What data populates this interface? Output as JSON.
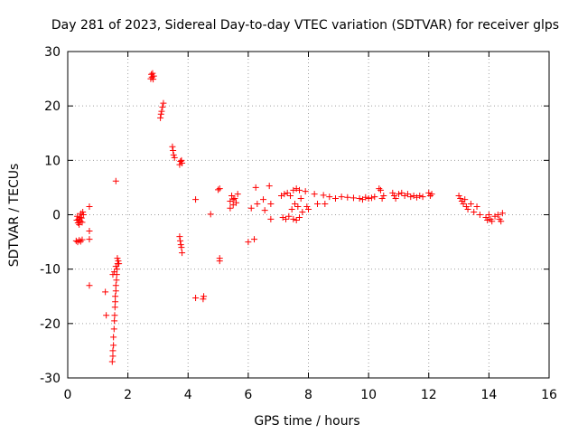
{
  "chart_data": {
    "type": "scatter",
    "title": "Day 281 of 2023, Sidereal Day-to-day VTEC variation (SDTVAR) for receiver glps",
    "xlabel": "GPS time / hours",
    "ylabel": "SDTVAR / TECUs",
    "xlim": [
      0,
      16
    ],
    "ylim": [
      -30,
      30
    ],
    "x_ticks": [
      0,
      2,
      4,
      6,
      8,
      10,
      12,
      14,
      16
    ],
    "x_tick_labels": [
      "0",
      "2",
      "4",
      "6",
      "8",
      "10",
      "12",
      "14",
      "16"
    ],
    "y_ticks": [
      -30,
      -20,
      -10,
      0,
      10,
      20,
      30
    ],
    "y_tick_labels": [
      "-30",
      "-20",
      "-10",
      "0",
      "10",
      "20",
      "30"
    ],
    "grid": true,
    "marker": "+",
    "series": [
      {
        "name": "SDTVAR",
        "color": "#ff0000",
        "points": [
          [
            0.3,
            -1.0
          ],
          [
            0.32,
            -0.3
          ],
          [
            0.34,
            -1.5
          ],
          [
            0.36,
            -0.8
          ],
          [
            0.38,
            -1.8
          ],
          [
            0.4,
            -0.5
          ],
          [
            0.42,
            -1.2
          ],
          [
            0.44,
            0.2
          ],
          [
            0.46,
            -0.6
          ],
          [
            0.48,
            -1.4
          ],
          [
            0.5,
            0.5
          ],
          [
            0.52,
            0.0
          ],
          [
            0.28,
            -4.8
          ],
          [
            0.33,
            -5.0
          ],
          [
            0.38,
            -4.7
          ],
          [
            0.43,
            -4.9
          ],
          [
            0.48,
            -4.6
          ],
          [
            0.72,
            1.5
          ],
          [
            0.72,
            -3.0
          ],
          [
            0.72,
            -4.5
          ],
          [
            0.72,
            -13.0
          ],
          [
            1.25,
            -14.2
          ],
          [
            1.28,
            -18.5
          ],
          [
            1.48,
            -27.0
          ],
          [
            1.5,
            -26.0
          ],
          [
            1.5,
            -25.0
          ],
          [
            1.52,
            -24.0
          ],
          [
            1.52,
            -22.5
          ],
          [
            1.54,
            -21.0
          ],
          [
            1.55,
            -19.5
          ],
          [
            1.56,
            -18.5
          ],
          [
            1.57,
            -17.0
          ],
          [
            1.58,
            -16.0
          ],
          [
            1.58,
            -15.0
          ],
          [
            1.6,
            -14.0
          ],
          [
            1.6,
            -13.0
          ],
          [
            1.62,
            -12.0
          ],
          [
            1.63,
            -11.0
          ],
          [
            1.64,
            -10.0
          ],
          [
            1.66,
            -9.0
          ],
          [
            1.68,
            -8.5
          ],
          [
            1.5,
            -11.0
          ],
          [
            1.55,
            -10.5
          ],
          [
            1.6,
            -9.5
          ],
          [
            1.65,
            -8.0
          ],
          [
            1.7,
            -9.0
          ],
          [
            1.6,
            6.2
          ],
          [
            2.76,
            25.0
          ],
          [
            2.78,
            25.8
          ],
          [
            2.8,
            25.3
          ],
          [
            2.82,
            26.0
          ],
          [
            2.84,
            24.9
          ],
          [
            2.86,
            25.5
          ],
          [
            3.08,
            17.8
          ],
          [
            3.1,
            18.5
          ],
          [
            3.12,
            19.0
          ],
          [
            3.15,
            19.8
          ],
          [
            3.18,
            20.5
          ],
          [
            3.48,
            12.5
          ],
          [
            3.5,
            11.8
          ],
          [
            3.52,
            11.0
          ],
          [
            3.55,
            10.5
          ],
          [
            3.72,
            9.2
          ],
          [
            3.75,
            9.8
          ],
          [
            3.78,
            10.0
          ],
          [
            3.8,
            9.5
          ],
          [
            3.72,
            -4.0
          ],
          [
            3.74,
            -4.8
          ],
          [
            3.76,
            -5.5
          ],
          [
            3.78,
            -6.0
          ],
          [
            3.8,
            -7.0
          ],
          [
            4.25,
            2.8
          ],
          [
            4.25,
            -15.3
          ],
          [
            4.5,
            -15.5
          ],
          [
            4.52,
            -15.0
          ],
          [
            4.75,
            0.1
          ],
          [
            5.05,
            -8.0
          ],
          [
            5.05,
            -8.5
          ],
          [
            5.0,
            4.6
          ],
          [
            5.05,
            4.8
          ],
          [
            5.4,
            2.5
          ],
          [
            5.45,
            3.5
          ],
          [
            5.5,
            1.8
          ],
          [
            5.55,
            3.0
          ],
          [
            5.6,
            2.2
          ],
          [
            5.65,
            3.8
          ],
          [
            5.4,
            1.2
          ],
          [
            5.5,
            2.8
          ],
          [
            6.0,
            -5.0
          ],
          [
            6.1,
            1.2
          ],
          [
            6.2,
            -4.5
          ],
          [
            6.25,
            5.0
          ],
          [
            6.3,
            2.0
          ],
          [
            6.5,
            2.8
          ],
          [
            6.55,
            0.8
          ],
          [
            6.7,
            5.3
          ],
          [
            6.75,
            2.0
          ],
          [
            6.75,
            -0.8
          ],
          [
            7.1,
            3.5
          ],
          [
            7.15,
            -0.5
          ],
          [
            7.2,
            3.8
          ],
          [
            7.25,
            -0.8
          ],
          [
            7.3,
            4.0
          ],
          [
            7.35,
            -0.3
          ],
          [
            7.4,
            3.5
          ],
          [
            7.45,
            1.0
          ],
          [
            7.5,
            4.5
          ],
          [
            7.55,
            2.0
          ],
          [
            7.6,
            4.8
          ],
          [
            7.65,
            1.5
          ],
          [
            7.7,
            4.5
          ],
          [
            7.75,
            3.0
          ],
          [
            7.5,
            -0.8
          ],
          [
            7.6,
            -1.0
          ],
          [
            7.7,
            -0.5
          ],
          [
            7.8,
            0.5
          ],
          [
            7.9,
            4.3
          ],
          [
            7.95,
            1.5
          ],
          [
            8.0,
            1.0
          ],
          [
            8.2,
            3.8
          ],
          [
            8.3,
            2.0
          ],
          [
            8.5,
            3.6
          ],
          [
            8.55,
            2.0
          ],
          [
            8.7,
            3.3
          ],
          [
            8.9,
            3.0
          ],
          [
            9.1,
            3.3
          ],
          [
            9.3,
            3.2
          ],
          [
            9.5,
            3.1
          ],
          [
            9.7,
            3.0
          ],
          [
            9.8,
            2.8
          ],
          [
            9.9,
            3.2
          ],
          [
            10.0,
            3.0
          ],
          [
            10.1,
            3.1
          ],
          [
            10.2,
            3.3
          ],
          [
            10.35,
            4.8
          ],
          [
            10.4,
            4.5
          ],
          [
            10.45,
            3.0
          ],
          [
            10.5,
            3.5
          ],
          [
            10.8,
            4.0
          ],
          [
            10.85,
            3.5
          ],
          [
            10.9,
            3.0
          ],
          [
            11.0,
            3.8
          ],
          [
            11.1,
            4.0
          ],
          [
            11.2,
            3.5
          ],
          [
            11.3,
            3.8
          ],
          [
            11.4,
            3.3
          ],
          [
            11.5,
            3.5
          ],
          [
            11.6,
            3.2
          ],
          [
            11.7,
            3.5
          ],
          [
            11.8,
            3.3
          ],
          [
            12.0,
            4.0
          ],
          [
            12.05,
            3.5
          ],
          [
            12.1,
            3.8
          ],
          [
            13.0,
            3.5
          ],
          [
            13.05,
            3.0
          ],
          [
            13.1,
            2.5
          ],
          [
            13.15,
            2.0
          ],
          [
            13.2,
            2.8
          ],
          [
            13.25,
            1.5
          ],
          [
            13.3,
            1.0
          ],
          [
            13.4,
            2.0
          ],
          [
            13.5,
            0.5
          ],
          [
            13.6,
            1.5
          ],
          [
            13.7,
            0.0
          ],
          [
            13.9,
            -0.5
          ],
          [
            13.95,
            -1.0
          ],
          [
            14.0,
            0.0
          ],
          [
            14.05,
            -0.8
          ],
          [
            14.1,
            -1.2
          ],
          [
            14.2,
            -0.3
          ],
          [
            14.3,
            0.0
          ],
          [
            14.35,
            -0.8
          ],
          [
            14.4,
            -1.2
          ],
          [
            14.45,
            0.3
          ]
        ]
      }
    ]
  }
}
